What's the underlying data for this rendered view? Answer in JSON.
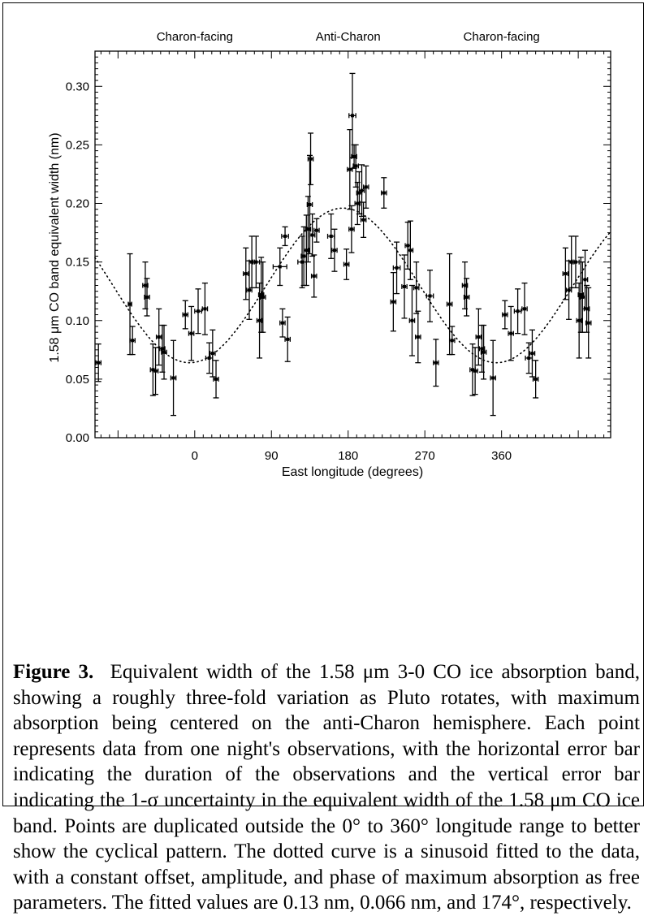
{
  "figure": {
    "caption_label": "Figure 3.",
    "caption_text": "Equivalent width of the 1.58 μm 3-0 CO ice absorption band, showing a roughly three-fold variation as Pluto rotates, with maximum absorption being centered on the anti-Charon hemisphere. Each point represents data from one night's observations, with the horizontal error bar indicating the duration of the observations and the vertical error bar indicating the 1-σ uncertainty in the equivalent width of the 1.58 μm CO ice band. Points are duplicated outside the 0° to 360° longitude range to better show the cyclical pattern. The dotted curve is a sinusoid fitted to the data, with a constant offset, amplitude, and phase of maximum absorption as free parameters. The fitted values are 0.13 nm, 0.066 nm, and 174°, respectively."
  },
  "chart_data": {
    "type": "scatter",
    "xlabel": "East longitude (degrees)",
    "ylabel": "1.58 μm CO band equivalent width (nm)",
    "xlim": [
      -117,
      488
    ],
    "ylim": [
      0.0,
      0.33
    ],
    "x_ticks": [
      0,
      90,
      180,
      270,
      360
    ],
    "y_ticks": [
      "0.00",
      "0.05",
      "0.10",
      "0.15",
      "0.20",
      "0.25",
      "0.30"
    ],
    "top_labels": [
      {
        "text": "Charon-facing",
        "x": 0
      },
      {
        "text": "Anti-Charon",
        "x": 180
      },
      {
        "text": "Charon-facing",
        "x": 360
      }
    ],
    "fit": {
      "offset": 0.13,
      "amplitude": 0.066,
      "phase": 174,
      "style": "dotted"
    },
    "points": [
      {
        "x": -113,
        "y": 0.064,
        "xerr": 3,
        "yerr": 0.016
      },
      {
        "x": -76,
        "y": 0.114,
        "xerr": 2,
        "yerr": 0.043
      },
      {
        "x": -73,
        "y": 0.083,
        "xerr": 3,
        "yerr": 0.012
      },
      {
        "x": -58,
        "y": 0.13,
        "xerr": 3,
        "yerr": 0.02
      },
      {
        "x": -56,
        "y": 0.12,
        "xerr": 3,
        "yerr": 0.016
      },
      {
        "x": -49,
        "y": 0.058,
        "xerr": 3,
        "yerr": 0.022
      },
      {
        "x": -46,
        "y": 0.057,
        "xerr": 3,
        "yerr": 0.02
      },
      {
        "x": -42,
        "y": 0.086,
        "xerr": 3,
        "yerr": 0.024
      },
      {
        "x": -38,
        "y": 0.076,
        "xerr": 3,
        "yerr": 0.02
      },
      {
        "x": -36,
        "y": 0.073,
        "xerr": 3,
        "yerr": 0.023
      },
      {
        "x": -25,
        "y": 0.051,
        "xerr": 3,
        "yerr": 0.032
      },
      {
        "x": -11,
        "y": 0.105,
        "xerr": 3,
        "yerr": 0.012
      },
      {
        "x": -4,
        "y": 0.089,
        "xerr": 3,
        "yerr": 0.023
      },
      {
        "x": 4,
        "y": 0.108,
        "xerr": 4,
        "yerr": 0.019
      },
      {
        "x": 12,
        "y": 0.11,
        "xerr": 3,
        "yerr": 0.022
      },
      {
        "x": 17,
        "y": 0.068,
        "xerr": 4,
        "yerr": 0.013
      },
      {
        "x": 21,
        "y": 0.072,
        "xerr": 3,
        "yerr": 0.02
      },
      {
        "x": 25,
        "y": 0.05,
        "xerr": 3,
        "yerr": 0.016
      },
      {
        "x": 60,
        "y": 0.14,
        "xerr": 3,
        "yerr": 0.022
      },
      {
        "x": 64,
        "y": 0.126,
        "xerr": 3,
        "yerr": 0.025
      },
      {
        "x": 67,
        "y": 0.15,
        "xerr": 3,
        "yerr": 0.022
      },
      {
        "x": 72,
        "y": 0.15,
        "xerr": 4,
        "yerr": 0.022
      },
      {
        "x": 76,
        "y": 0.1,
        "xerr": 3,
        "yerr": 0.032
      },
      {
        "x": 78,
        "y": 0.122,
        "xerr": 3,
        "yerr": 0.032
      },
      {
        "x": 80,
        "y": 0.12,
        "xerr": 3,
        "yerr": 0.03
      },
      {
        "x": 103,
        "y": 0.098,
        "xerr": 3,
        "yerr": 0.012
      },
      {
        "x": 106,
        "y": 0.172,
        "xerr": 4,
        "yerr": 0.008
      },
      {
        "x": 109,
        "y": 0.084,
        "xerr": 3,
        "yerr": 0.019
      },
      {
        "x": 100,
        "y": 0.146,
        "xerr": 8,
        "yerr": 0.016
      },
      {
        "x": 126,
        "y": 0.15,
        "xerr": 5,
        "yerr": 0.022
      },
      {
        "x": 128,
        "y": 0.155,
        "xerr": 3,
        "yerr": 0.025
      },
      {
        "x": 131,
        "y": 0.16,
        "xerr": 3,
        "yerr": 0.03
      },
      {
        "x": 133,
        "y": 0.178,
        "xerr": 3,
        "yerr": 0.028
      },
      {
        "x": 135,
        "y": 0.199,
        "xerr": 3,
        "yerr": 0.042
      },
      {
        "x": 136,
        "y": 0.238,
        "xerr": 3,
        "yerr": 0.022
      },
      {
        "x": 138,
        "y": 0.173,
        "xerr": 3,
        "yerr": 0.018
      },
      {
        "x": 140,
        "y": 0.138,
        "xerr": 3,
        "yerr": 0.018
      },
      {
        "x": 143,
        "y": 0.177,
        "xerr": 3,
        "yerr": 0.01
      },
      {
        "x": 160,
        "y": 0.172,
        "xerr": 4,
        "yerr": 0.019
      },
      {
        "x": 164,
        "y": 0.16,
        "xerr": 3,
        "yerr": 0.018
      },
      {
        "x": 178,
        "y": 0.148,
        "xerr": 3,
        "yerr": 0.013
      },
      {
        "x": 182,
        "y": 0.229,
        "xerr": 3,
        "yerr": 0.034
      },
      {
        "x": 184,
        "y": 0.178,
        "xerr": 3,
        "yerr": 0.02
      },
      {
        "x": 185,
        "y": 0.275,
        "xerr": 4,
        "yerr": 0.036
      },
      {
        "x": 187,
        "y": 0.24,
        "xerr": 3,
        "yerr": 0.01
      },
      {
        "x": 189,
        "y": 0.232,
        "xerr": 3,
        "yerr": 0.018
      },
      {
        "x": 191,
        "y": 0.2,
        "xerr": 3,
        "yerr": 0.018
      },
      {
        "x": 193,
        "y": 0.209,
        "xerr": 3,
        "yerr": 0.018
      },
      {
        "x": 196,
        "y": 0.211,
        "xerr": 3,
        "yerr": 0.022
      },
      {
        "x": 198,
        "y": 0.186,
        "xerr": 3,
        "yerr": 0.015
      },
      {
        "x": 201,
        "y": 0.214,
        "xerr": 3,
        "yerr": 0.018
      },
      {
        "x": 222,
        "y": 0.209,
        "xerr": 3,
        "yerr": 0.013
      },
      {
        "x": 233,
        "y": 0.116,
        "xerr": 3,
        "yerr": 0.025
      },
      {
        "x": 237,
        "y": 0.145,
        "xerr": 4,
        "yerr": 0.022
      },
      {
        "x": 246,
        "y": 0.129,
        "xerr": 3,
        "yerr": 0.027
      },
      {
        "x": 250,
        "y": 0.164,
        "xerr": 3,
        "yerr": 0.02
      },
      {
        "x": 253,
        "y": 0.16,
        "xerr": 3,
        "yerr": 0.025
      },
      {
        "x": 255,
        "y": 0.1,
        "xerr": 3,
        "yerr": 0.03
      },
      {
        "x": 260,
        "y": 0.128,
        "xerr": 3,
        "yerr": 0.022
      },
      {
        "x": 262,
        "y": 0.086,
        "xerr": 3,
        "yerr": 0.022
      },
      {
        "x": 276,
        "y": 0.121,
        "xerr": 4,
        "yerr": 0.022
      },
      {
        "x": 283,
        "y": 0.064,
        "xerr": 3,
        "yerr": 0.02
      },
      {
        "x": 299,
        "y": 0.114,
        "xerr": 3,
        "yerr": 0.043
      },
      {
        "x": 302,
        "y": 0.083,
        "xerr": 3,
        "yerr": 0.012
      },
      {
        "x": 317,
        "y": 0.13,
        "xerr": 3,
        "yerr": 0.02
      },
      {
        "x": 319,
        "y": 0.12,
        "xerr": 3,
        "yerr": 0.016
      },
      {
        "x": 326,
        "y": 0.058,
        "xerr": 3,
        "yerr": 0.022
      },
      {
        "x": 329,
        "y": 0.057,
        "xerr": 3,
        "yerr": 0.02
      },
      {
        "x": 333,
        "y": 0.086,
        "xerr": 3,
        "yerr": 0.024
      },
      {
        "x": 337,
        "y": 0.076,
        "xerr": 3,
        "yerr": 0.02
      },
      {
        "x": 339,
        "y": 0.073,
        "xerr": 3,
        "yerr": 0.023
      },
      {
        "x": 350,
        "y": 0.051,
        "xerr": 3,
        "yerr": 0.032
      },
      {
        "x": 364,
        "y": 0.105,
        "xerr": 3,
        "yerr": 0.012
      },
      {
        "x": 371,
        "y": 0.089,
        "xerr": 3,
        "yerr": 0.023
      },
      {
        "x": 379,
        "y": 0.108,
        "xerr": 4,
        "yerr": 0.019
      },
      {
        "x": 387,
        "y": 0.11,
        "xerr": 3,
        "yerr": 0.022
      },
      {
        "x": 392,
        "y": 0.068,
        "xerr": 4,
        "yerr": 0.013
      },
      {
        "x": 396,
        "y": 0.072,
        "xerr": 3,
        "yerr": 0.02
      },
      {
        "x": 400,
        "y": 0.05,
        "xerr": 3,
        "yerr": 0.016
      },
      {
        "x": 435,
        "y": 0.14,
        "xerr": 3,
        "yerr": 0.022
      },
      {
        "x": 439,
        "y": 0.126,
        "xerr": 3,
        "yerr": 0.025
      },
      {
        "x": 442,
        "y": 0.15,
        "xerr": 3,
        "yerr": 0.022
      },
      {
        "x": 447,
        "y": 0.15,
        "xerr": 4,
        "yerr": 0.022
      },
      {
        "x": 451,
        "y": 0.1,
        "xerr": 3,
        "yerr": 0.032
      },
      {
        "x": 453,
        "y": 0.122,
        "xerr": 3,
        "yerr": 0.032
      },
      {
        "x": 455,
        "y": 0.12,
        "xerr": 3,
        "yerr": 0.03
      },
      {
        "x": 458,
        "y": 0.135,
        "xerr": 3,
        "yerr": 0.025
      },
      {
        "x": 460,
        "y": 0.11,
        "xerr": 3,
        "yerr": 0.02
      },
      {
        "x": 462,
        "y": 0.098,
        "xerr": 3,
        "yerr": 0.03
      }
    ]
  }
}
